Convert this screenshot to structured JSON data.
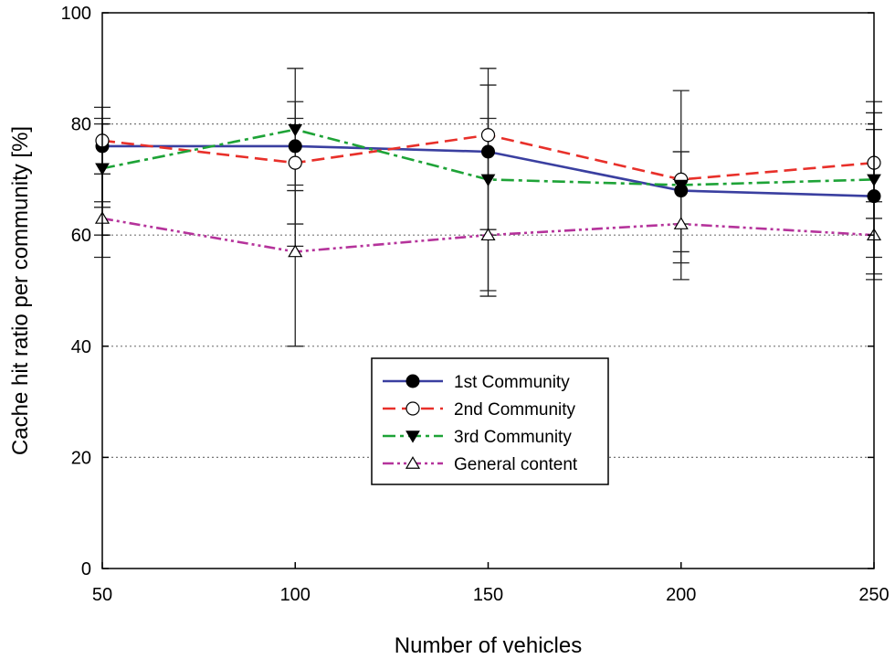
{
  "chart_data": {
    "type": "line",
    "title": "",
    "xlabel": "Number of vehicles",
    "ylabel": "Cache hit ratio per community [%]",
    "x": [
      50,
      100,
      150,
      200,
      250
    ],
    "xlim": [
      50,
      250
    ],
    "ylim": [
      0,
      100
    ],
    "xticks": [
      "50",
      "100",
      "150",
      "200",
      "250"
    ],
    "yticks": [
      "0",
      "20",
      "40",
      "60",
      "80",
      "100"
    ],
    "grid": "horizontal dotted at 20, 40, 60, 80",
    "legend_position": "bottom-center",
    "series": [
      {
        "name": "1st Community",
        "color": "#3a3fa0",
        "dash": "solid",
        "marker": "filled-circle",
        "values": [
          76,
          76,
          75,
          68,
          67
        ],
        "err_low": [
          56,
          40,
          50,
          55,
          53
        ],
        "err_high": [
          83,
          90,
          90,
          86,
          84
        ]
      },
      {
        "name": "2nd Community",
        "color": "#e8302a",
        "dash": "dashed",
        "marker": "open-circle",
        "values": [
          77,
          73,
          78,
          70,
          73
        ],
        "err_low": [
          66,
          62,
          60,
          57,
          56
        ],
        "err_high": [
          81,
          84,
          87,
          75,
          82
        ]
      },
      {
        "name": "3rd Community",
        "color": "#1ea337",
        "dash": "dash-dot",
        "marker": "filled-triangle-down",
        "values": [
          72,
          79,
          70,
          69,
          70
        ],
        "err_low": [
          65,
          69,
          61,
          62,
          63
        ],
        "err_high": [
          80,
          81,
          81,
          75,
          79
        ]
      },
      {
        "name": "General content",
        "color": "#b5339b",
        "dash": "dash-dot-dot",
        "marker": "open-triangle-up",
        "values": [
          63,
          57,
          60,
          62,
          60
        ],
        "err_low": [
          60,
          58,
          49,
          52,
          52
        ],
        "err_high": [
          71,
          68,
          61,
          70,
          66
        ]
      }
    ]
  }
}
